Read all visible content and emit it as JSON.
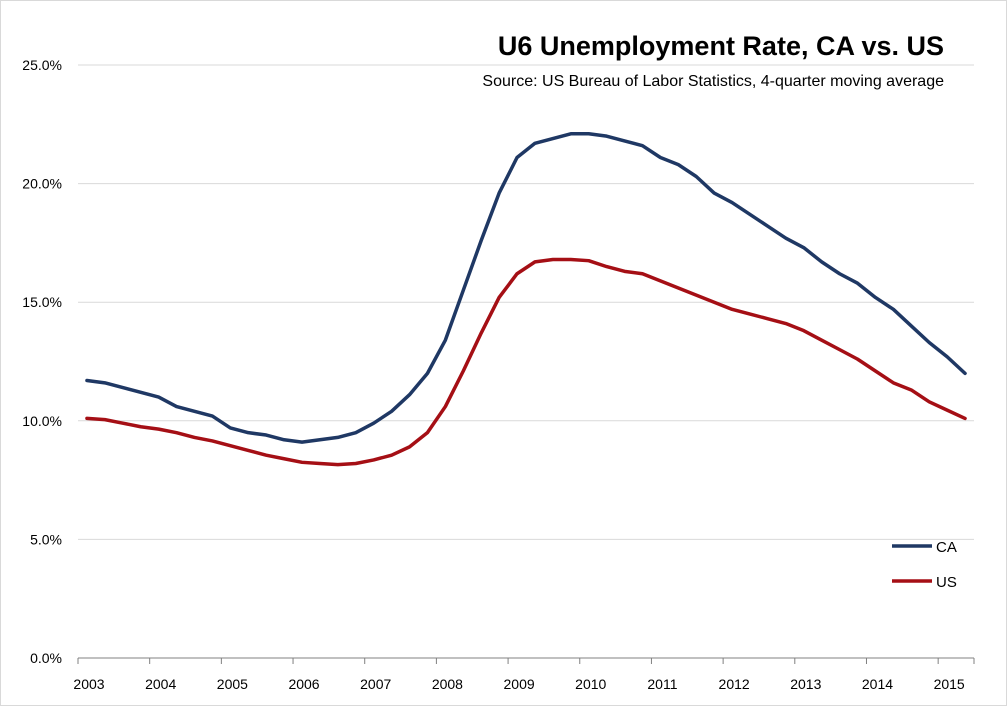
{
  "chart_data": {
    "type": "line",
    "title": "U6 Unemployment Rate, CA vs. US",
    "subtitle": "Source:  US Bureau of Labor Statistics, 4-quarter moving average",
    "xlabel": "",
    "ylabel": "",
    "x_tick_labels": [
      "2003",
      "2004",
      "2005",
      "2006",
      "2007",
      "2008",
      "2009",
      "2010",
      "2011",
      "2012",
      "2013",
      "2014",
      "2015"
    ],
    "y_tick_labels": [
      "0.0%",
      "5.0%",
      "10.0%",
      "15.0%",
      "20.0%",
      "25.0%"
    ],
    "ylim": [
      0,
      25
    ],
    "xlim": [
      2003,
      2015.5
    ],
    "grid": "horizontal",
    "legend_position": "bottom-right",
    "x": [
      2003.0,
      2003.25,
      2003.5,
      2003.75,
      2004.0,
      2004.25,
      2004.5,
      2004.75,
      2005.0,
      2005.25,
      2005.5,
      2005.75,
      2006.0,
      2006.25,
      2006.5,
      2006.75,
      2007.0,
      2007.25,
      2007.5,
      2007.75,
      2008.0,
      2008.25,
      2008.5,
      2008.75,
      2009.0,
      2009.25,
      2009.5,
      2009.75,
      2010.0,
      2010.25,
      2010.5,
      2010.75,
      2011.0,
      2011.25,
      2011.5,
      2011.75,
      2012.0,
      2012.25,
      2012.5,
      2012.75,
      2013.0,
      2013.25,
      2013.5,
      2013.75,
      2014.0,
      2014.25,
      2014.5,
      2014.75,
      2015.0,
      2015.25
    ],
    "series": [
      {
        "name": "CA",
        "color": "#1f3864",
        "values": [
          11.7,
          11.6,
          11.4,
          11.2,
          11.0,
          10.6,
          10.4,
          10.2,
          9.7,
          9.5,
          9.4,
          9.2,
          9.1,
          9.2,
          9.3,
          9.5,
          9.9,
          10.4,
          11.1,
          12.0,
          13.4,
          15.5,
          17.6,
          19.6,
          21.1,
          21.7,
          21.9,
          22.1,
          22.1,
          22.0,
          21.8,
          21.6,
          21.1,
          20.8,
          20.3,
          19.6,
          19.2,
          18.7,
          18.2,
          17.7,
          17.3,
          16.7,
          16.2,
          15.8,
          15.2,
          14.7,
          14.0,
          13.3,
          12.7,
          12.0
        ]
      },
      {
        "name": "US",
        "color": "#a50f15",
        "values": [
          10.1,
          10.05,
          9.9,
          9.75,
          9.65,
          9.5,
          9.3,
          9.15,
          8.95,
          8.75,
          8.55,
          8.4,
          8.25,
          8.2,
          8.15,
          8.2,
          8.35,
          8.55,
          8.9,
          9.5,
          10.6,
          12.1,
          13.7,
          15.2,
          16.2,
          16.7,
          16.8,
          16.8,
          16.75,
          16.5,
          16.3,
          16.2,
          15.9,
          15.6,
          15.3,
          15.0,
          14.7,
          14.5,
          14.3,
          14.1,
          13.8,
          13.4,
          13.0,
          12.6,
          12.1,
          11.6,
          11.3,
          10.8,
          10.45,
          10.1
        ]
      }
    ]
  }
}
